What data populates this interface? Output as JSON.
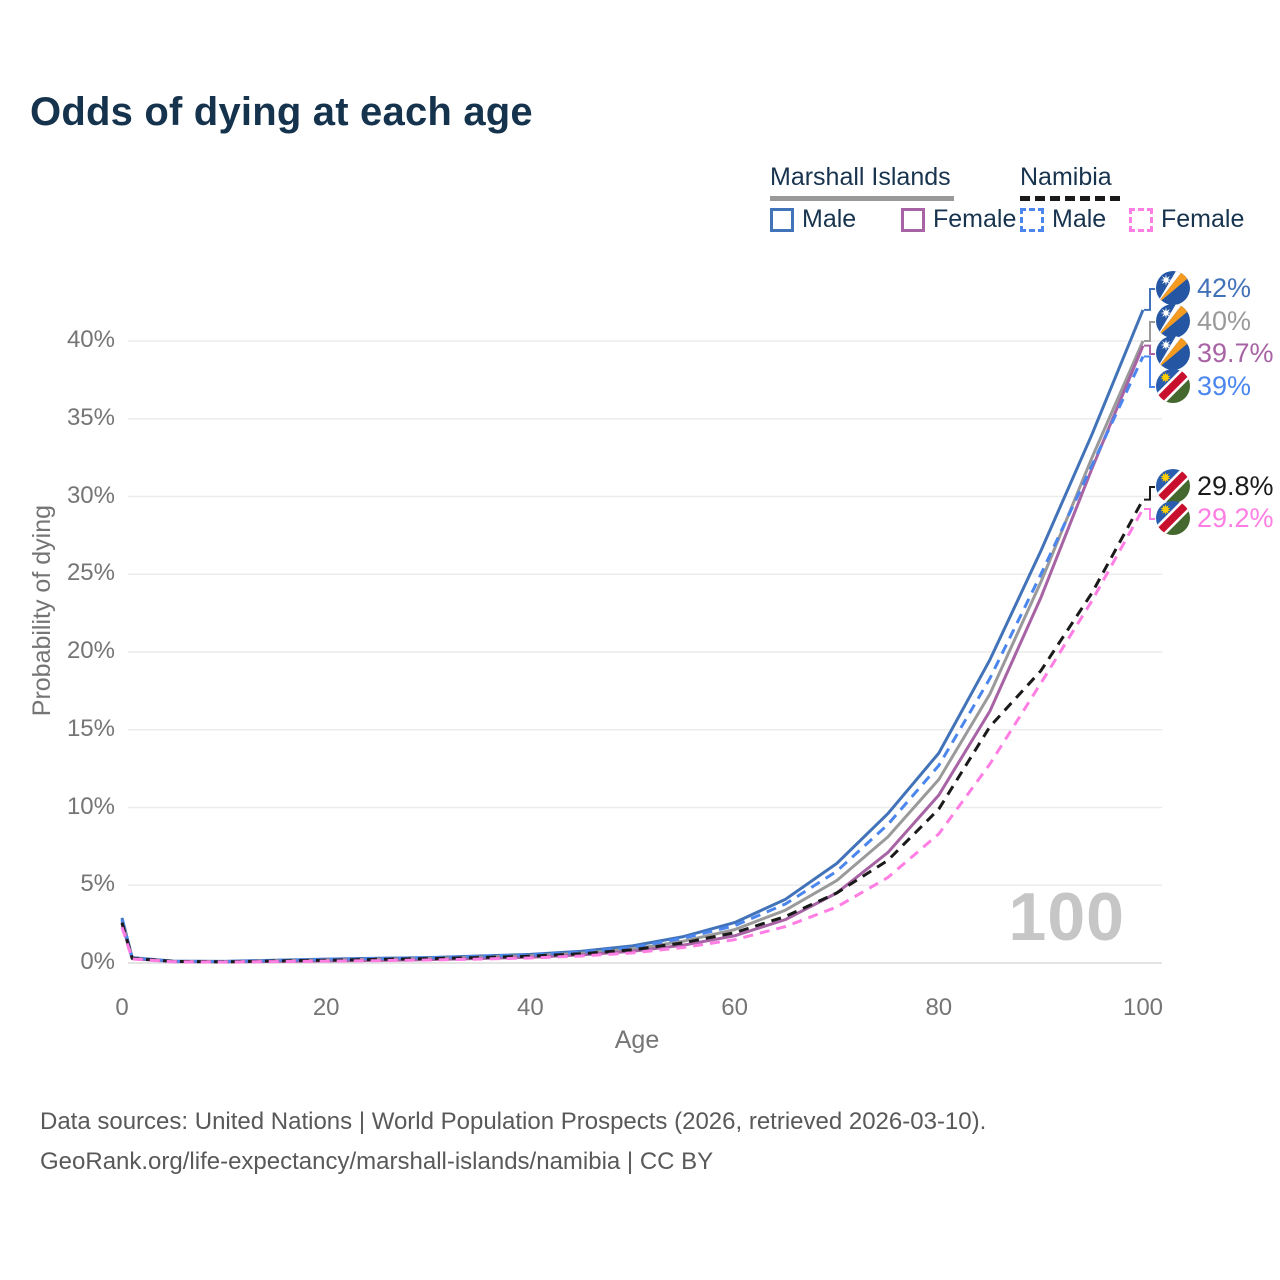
{
  "title": "Odds of dying at each age",
  "watermark_age": "100",
  "legend": {
    "groups": [
      {
        "label": "Marshall Islands",
        "line_style": "solid",
        "underline_color": "#999999",
        "items": [
          {
            "label": "Male",
            "color": "#4273b8",
            "dashed": false
          },
          {
            "label": "Female",
            "color": "#a763a4",
            "dashed": false
          }
        ]
      },
      {
        "label": "Namibia",
        "line_style": "dashed",
        "underline_color": "#1a1a1a",
        "items": [
          {
            "label": "Male",
            "color": "#4b86ee",
            "dashed": true
          },
          {
            "label": "Female",
            "color": "#ff7ee3",
            "dashed": true
          }
        ]
      }
    ]
  },
  "footer": {
    "line1": "Data sources: United Nations | World Population Prospects (2026, retrieved 2026-03-10).",
    "line2": "GeoRank.org/life-expectancy/marshall-islands/namibia | CC BY"
  },
  "chart_data": {
    "type": "line",
    "title": "Odds of dying at each age",
    "xlabel": "Age",
    "ylabel": "Probability of dying",
    "xlim": [
      0,
      100
    ],
    "ylim": [
      0,
      44
    ],
    "x_ticks": [
      0,
      20,
      40,
      60,
      80,
      100
    ],
    "y_ticks": [
      {
        "value": 0,
        "label": "0%"
      },
      {
        "value": 5,
        "label": "5%"
      },
      {
        "value": 10,
        "label": "10%"
      },
      {
        "value": 15,
        "label": "15%"
      },
      {
        "value": 20,
        "label": "20%"
      },
      {
        "value": 25,
        "label": "25%"
      },
      {
        "value": 30,
        "label": "30%"
      },
      {
        "value": 35,
        "label": "35%"
      },
      {
        "value": 40,
        "label": "40%"
      }
    ],
    "grid": "horizontal",
    "legend_position": "top-right",
    "ages": [
      0,
      1,
      5,
      10,
      15,
      20,
      25,
      30,
      35,
      40,
      45,
      50,
      55,
      60,
      65,
      70,
      75,
      80,
      85,
      90,
      95,
      100
    ],
    "series": [
      {
        "name": "Marshall Islands Male",
        "country": "Marshall Islands",
        "sex": "Male",
        "flag": "marshall-islands",
        "color": "#4273b8",
        "dash": "solid",
        "end_label": "42%",
        "values": [
          2.9,
          0.35,
          0.12,
          0.1,
          0.18,
          0.25,
          0.3,
          0.35,
          0.45,
          0.55,
          0.75,
          1.1,
          1.7,
          2.6,
          4.1,
          6.4,
          9.6,
          13.5,
          19.5,
          26.5,
          34.0,
          42.0
        ]
      },
      {
        "name": "Marshall Islands Both sexes",
        "country": "Marshall Islands",
        "sex": "Both",
        "flag": "marshall-islands",
        "color": "#9a9a9a",
        "dash": "solid",
        "end_label": "40%",
        "values": [
          2.7,
          0.3,
          0.1,
          0.08,
          0.14,
          0.19,
          0.24,
          0.29,
          0.37,
          0.46,
          0.63,
          0.9,
          1.4,
          2.15,
          3.4,
          5.3,
          8.1,
          11.8,
          17.3,
          24.5,
          32.5,
          40.0
        ]
      },
      {
        "name": "Marshall Islands Female",
        "country": "Marshall Islands",
        "sex": "Female",
        "flag": "marshall-islands",
        "color": "#a763a4",
        "dash": "solid",
        "end_label": "39.7%",
        "values": [
          2.5,
          0.28,
          0.09,
          0.07,
          0.1,
          0.13,
          0.17,
          0.22,
          0.29,
          0.37,
          0.52,
          0.75,
          1.15,
          1.75,
          2.8,
          4.5,
          7.1,
          10.8,
          16.2,
          23.5,
          31.8,
          39.7
        ]
      },
      {
        "name": "Namibia Male",
        "country": "Namibia",
        "sex": "Male",
        "flag": "namibia",
        "color": "#4b86ee",
        "dash": "dashed",
        "end_label": "39%",
        "values": [
          2.8,
          0.32,
          0.11,
          0.09,
          0.17,
          0.24,
          0.29,
          0.34,
          0.43,
          0.52,
          0.7,
          1.0,
          1.6,
          2.4,
          3.8,
          5.9,
          8.9,
          12.7,
          18.3,
          25.0,
          32.0,
          39.0
        ]
      },
      {
        "name": "Namibia Both sexes",
        "country": "Namibia",
        "sex": "Both",
        "flag": "namibia",
        "color": "#1a1a1a",
        "dash": "dashed",
        "end_label": "29.8%",
        "values": [
          2.6,
          0.3,
          0.1,
          0.08,
          0.13,
          0.18,
          0.23,
          0.28,
          0.35,
          0.44,
          0.6,
          0.85,
          1.3,
          1.95,
          3.0,
          4.5,
          6.6,
          9.9,
          15.2,
          18.8,
          23.8,
          29.8
        ]
      },
      {
        "name": "Namibia Female",
        "country": "Namibia",
        "sex": "Female",
        "flag": "namibia",
        "color": "#ff7ee3",
        "dash": "dashed",
        "end_label": "29.2%",
        "values": [
          2.3,
          0.26,
          0.08,
          0.06,
          0.09,
          0.12,
          0.15,
          0.19,
          0.25,
          0.32,
          0.45,
          0.65,
          1.0,
          1.5,
          2.35,
          3.6,
          5.5,
          8.3,
          12.8,
          18.0,
          23.3,
          29.2
        ]
      }
    ]
  }
}
